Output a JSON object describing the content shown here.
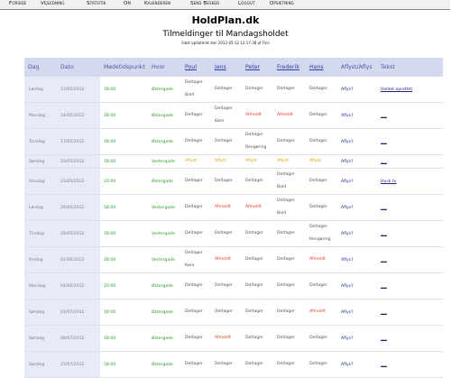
{
  "nav": [
    "Forside",
    "Vejledning",
    "Statistik",
    "Om",
    "Kalenderen",
    "Send Besked",
    "Logout",
    "Opsætning"
  ],
  "title": "HoldPlan.dk",
  "subtitle": "Tilmeldinger til Mandagsholdet",
  "updated": "Sidst opdateret den 2012-05-12 12:17:38 af Finn",
  "columns": [
    "Dag",
    "Dato",
    "Mødetidspunkt",
    "Hvor",
    "Poul",
    "Jens",
    "Peter",
    "Frederik",
    "Hans",
    "Aflyst/Aflys",
    "Tekst"
  ],
  "rows": [
    {
      "day": "Lørdag",
      "date": "12/05/2012",
      "time": "18:00",
      "place": "Østergade",
      "poul": [
        "Deltager",
        "Bold"
      ],
      "jens": [
        "Deltager"
      ],
      "peter": [
        "Deltager"
      ],
      "frederik": [
        "Deltager"
      ],
      "hans": [
        "Deltager"
      ],
      "aflys": "Aflys?",
      "tekst": "Holdet oprettet"
    },
    {
      "day": "Mandag",
      "date": "14/05/2012",
      "time": "18:00",
      "place": "Østergade",
      "poul": [
        "Deltager"
      ],
      "jens": [
        "Deltager",
        "Køre"
      ],
      "peter": [
        "Afmeldt"
      ],
      "frederik": [
        "Afmeldt"
      ],
      "hans": [
        "Deltager"
      ],
      "aflys": "Aflys?",
      "tekst": "___"
    },
    {
      "day": "Torsdag",
      "date": "17/05/2012",
      "time": "18:00",
      "place": "Østergade",
      "poul": [
        "Deltager"
      ],
      "jens": [
        "Deltager"
      ],
      "peter": [
        "Deltager",
        "Rengøring"
      ],
      "frederik": [
        "Deltager"
      ],
      "hans": [
        "Deltager"
      ],
      "aflys": "Aflys?",
      "tekst": "___"
    },
    {
      "day": "Søndag",
      "date": "20/05/2012",
      "time": "18:00",
      "place": "Vestergade",
      "poul": [
        "Aflyst"
      ],
      "jens": [
        "Aflyst"
      ],
      "peter": [
        "Aflyst"
      ],
      "frederik": [
        "Aflyst"
      ],
      "hans": [
        "Aflyst"
      ],
      "aflys": "Aflys?",
      "tekst": "___"
    },
    {
      "day": "Onsdag",
      "date": "23/05/2012",
      "time": "20:00",
      "place": "Østergade",
      "poul": [
        "Deltager"
      ],
      "jens": [
        "Deltager"
      ],
      "peter": [
        "Deltager"
      ],
      "frederik": [
        "Deltager",
        "Bold"
      ],
      "hans": [
        "Deltager"
      ],
      "aflys": "Aflys?",
      "tekst": "Husk tv"
    },
    {
      "day": "Lørdag",
      "date": "26/05/2012",
      "time": "18:00",
      "place": "Vestergade",
      "poul": [
        "Deltager"
      ],
      "jens": [
        "Afmeldt"
      ],
      "peter": [
        "Afmeldt"
      ],
      "frederik": [
        "Deltager",
        "Bold"
      ],
      "hans": [
        "Deltager"
      ],
      "aflys": "Aflys?",
      "tekst": "___"
    },
    {
      "day": "Tirsdag",
      "date": "29/05/2012",
      "time": "18:00",
      "place": "Vestergade",
      "poul": [
        "Deltager"
      ],
      "jens": [
        "Deltager"
      ],
      "peter": [
        "Deltager"
      ],
      "frederik": [
        "Deltager"
      ],
      "hans": [
        "Deltager",
        "Rengøring"
      ],
      "aflys": "Aflys?",
      "tekst": "___"
    },
    {
      "day": "Fredag",
      "date": "01/06/2012",
      "time": "18:00",
      "place": "Vestergade",
      "poul": [
        "Deltager",
        "Køre"
      ],
      "jens": [
        "Afmeldt"
      ],
      "peter": [
        "Deltager"
      ],
      "frederik": [
        "Deltager"
      ],
      "hans": [
        "Afmeldt"
      ],
      "aflys": "Aflys?",
      "tekst": "___"
    },
    {
      "day": "Mandag",
      "date": "04/06/2012",
      "time": "20:00",
      "place": "Østergade",
      "poul": [
        "Deltager"
      ],
      "jens": [
        "Deltager"
      ],
      "peter": [
        "Deltager"
      ],
      "frederik": [
        "Deltager"
      ],
      "hans": [
        "Deltager"
      ],
      "aflys": "Aflys?",
      "tekst": "___"
    },
    {
      "day": "Søndag",
      "date": "01/07/2012",
      "time": "18:00",
      "place": "Østergade",
      "poul": [
        "Deltager"
      ],
      "jens": [
        "Deltager"
      ],
      "peter": [
        "Deltager"
      ],
      "frederik": [
        "Deltager"
      ],
      "hans": [
        "Afmeldt"
      ],
      "aflys": "Aflys?",
      "tekst": "___"
    },
    {
      "day": "Søndag",
      "date": "08/07/2012",
      "time": "18:00",
      "place": "Østergade",
      "poul": [
        "Deltager"
      ],
      "jens": [
        "Afmeldt"
      ],
      "peter": [
        "Deltager"
      ],
      "frederik": [
        "Deltager"
      ],
      "hans": [
        "Deltager"
      ],
      "aflys": "Aflys?",
      "tekst": "___"
    },
    {
      "day": "Søndag",
      "date": "15/07/2012",
      "time": "18:00",
      "place": "Østergade",
      "poul": [
        "Deltager"
      ],
      "jens": [
        "Deltager"
      ],
      "peter": [
        "Deltager"
      ],
      "frederik": [
        "Deltager"
      ],
      "hans": [
        "Deltager"
      ],
      "aflys": "Aflys?",
      "tekst": "___"
    }
  ],
  "colors": {
    "meet": "#2d9a2d",
    "afmeldt": "#e33a2a",
    "aflyst": "#e1a100",
    "header_bg": "#d4d9ee"
  }
}
